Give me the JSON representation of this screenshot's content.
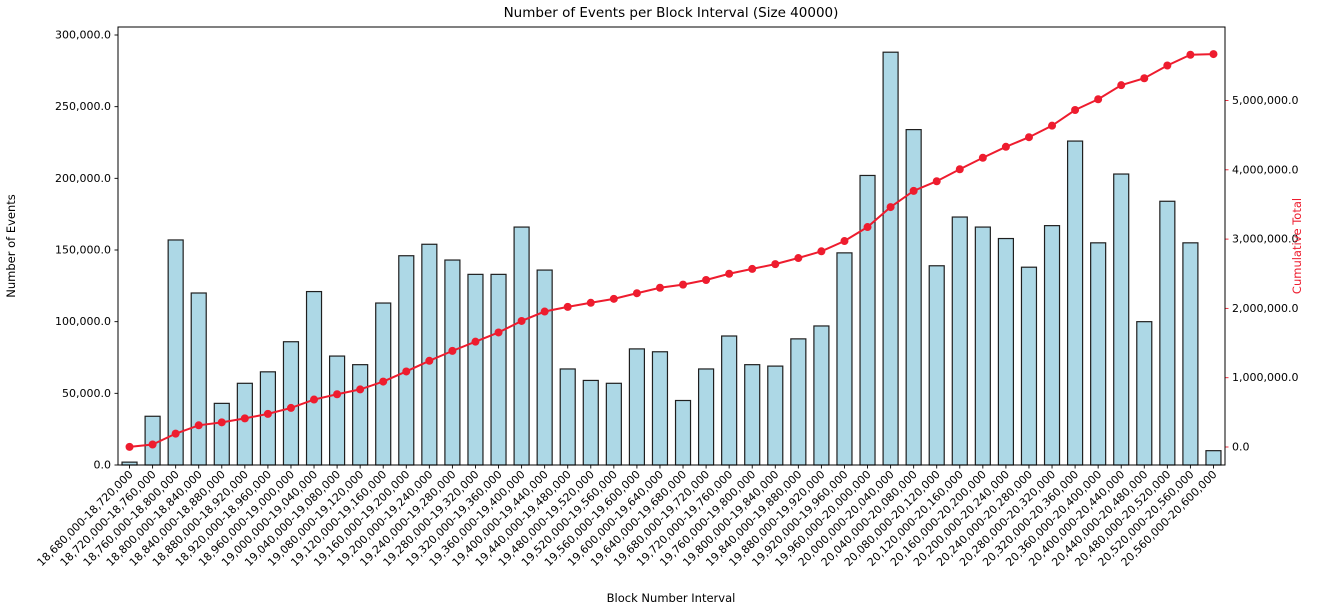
{
  "chart_data": {
    "type": "bar+line",
    "title": "Number of Events per Block Interval (Size 40000)",
    "xlabel": "Block Number Interval",
    "ylabel_left": "Number of Events",
    "ylabel_right": "Cumulative Total",
    "grid": false,
    "legend": "none",
    "colors": {
      "bar_fill": "#ADD8E6",
      "bar_edge": "#1f1f1f",
      "line": "#ee1c2e",
      "axis": "#000000"
    },
    "categories": [
      "18,680,000-18,720,000",
      "18,720,000-18,760,000",
      "18,760,000-18,800,000",
      "18,800,000-18,840,000",
      "18,840,000-18,880,000",
      "18,880,000-18,920,000",
      "18,920,000-18,960,000",
      "18,960,000-19,000,000",
      "19,000,000-19,040,000",
      "19,040,000-19,080,000",
      "19,080,000-19,120,000",
      "19,120,000-19,160,000",
      "19,160,000-19,200,000",
      "19,200,000-19,240,000",
      "19,240,000-19,280,000",
      "19,280,000-19,320,000",
      "19,320,000-19,360,000",
      "19,360,000-19,400,000",
      "19,400,000-19,440,000",
      "19,440,000-19,480,000",
      "19,480,000-19,520,000",
      "19,520,000-19,560,000",
      "19,560,000-19,600,000",
      "19,600,000-19,640,000",
      "19,640,000-19,680,000",
      "19,680,000-19,720,000",
      "19,720,000-19,760,000",
      "19,760,000-19,800,000",
      "19,800,000-19,840,000",
      "19,840,000-19,880,000",
      "19,880,000-19,920,000",
      "19,920,000-19,960,000",
      "19,960,000-20,000,000",
      "20,000,000-20,040,000",
      "20,040,000-20,080,000",
      "20,080,000-20,120,000",
      "20,120,000-20,160,000",
      "20,160,000-20,200,000",
      "20,200,000-20,240,000",
      "20,240,000-20,280,000",
      "20,280,000-20,320,000",
      "20,320,000-20,360,000",
      "20,360,000-20,400,000",
      "20,400,000-20,440,000",
      "20,440,000-20,480,000",
      "20,480,000-20,520,000",
      "20,520,000-20,560,000",
      "20,560,000-20,600,000"
    ],
    "series": [
      {
        "name": "Number of Events",
        "type": "bar",
        "axis": "left",
        "values": [
          2000,
          34000,
          157000,
          120000,
          43000,
          57000,
          65000,
          86000,
          121000,
          76000,
          70000,
          113000,
          146000,
          154000,
          143000,
          133000,
          133000,
          166000,
          136000,
          67000,
          59000,
          57000,
          81000,
          79000,
          45000,
          67000,
          90000,
          70000,
          69000,
          88000,
          97000,
          148000,
          202000,
          288000,
          234000,
          139000,
          173000,
          166000,
          158000,
          138000,
          167000,
          226000,
          155000,
          203000,
          100000,
          184000,
          155000,
          10000
        ]
      },
      {
        "name": "Cumulative Total",
        "type": "line",
        "axis": "right",
        "values": [
          2000,
          36000,
          193000,
          313000,
          356000,
          413000,
          478000,
          564000,
          685000,
          761000,
          831000,
          944000,
          1090000,
          1244000,
          1387000,
          1520000,
          1653000,
          1819000,
          1955000,
          2022000,
          2081000,
          2138000,
          2219000,
          2298000,
          2343000,
          2410000,
          2500000,
          2570000,
          2639000,
          2727000,
          2824000,
          2972000,
          3174000,
          3462000,
          3696000,
          3835000,
          4008000,
          4174000,
          4332000,
          4470000,
          4637000,
          4863000,
          5018000,
          5221000,
          5321000,
          5505000,
          5660000,
          5670000
        ]
      }
    ],
    "left_axis": {
      "lim": [
        0,
        305581
      ],
      "ticks": [
        0,
        50000,
        100000,
        150000,
        200000,
        250000,
        300000
      ],
      "tick_labels": [
        "0.0",
        "50,000.0",
        "100,000.0",
        "150,000.0",
        "200,000.0",
        "250,000.0",
        "300,000.0"
      ]
    },
    "right_axis": {
      "lim": [
        -259740,
        6060606
      ],
      "ticks": [
        0,
        1000000,
        2000000,
        3000000,
        4000000,
        5000000
      ],
      "tick_labels": [
        "0.0",
        "1,000,000.0",
        "2,000,000.0",
        "3,000,000.0",
        "4,000,000.0",
        "5,000,000.0"
      ]
    }
  }
}
